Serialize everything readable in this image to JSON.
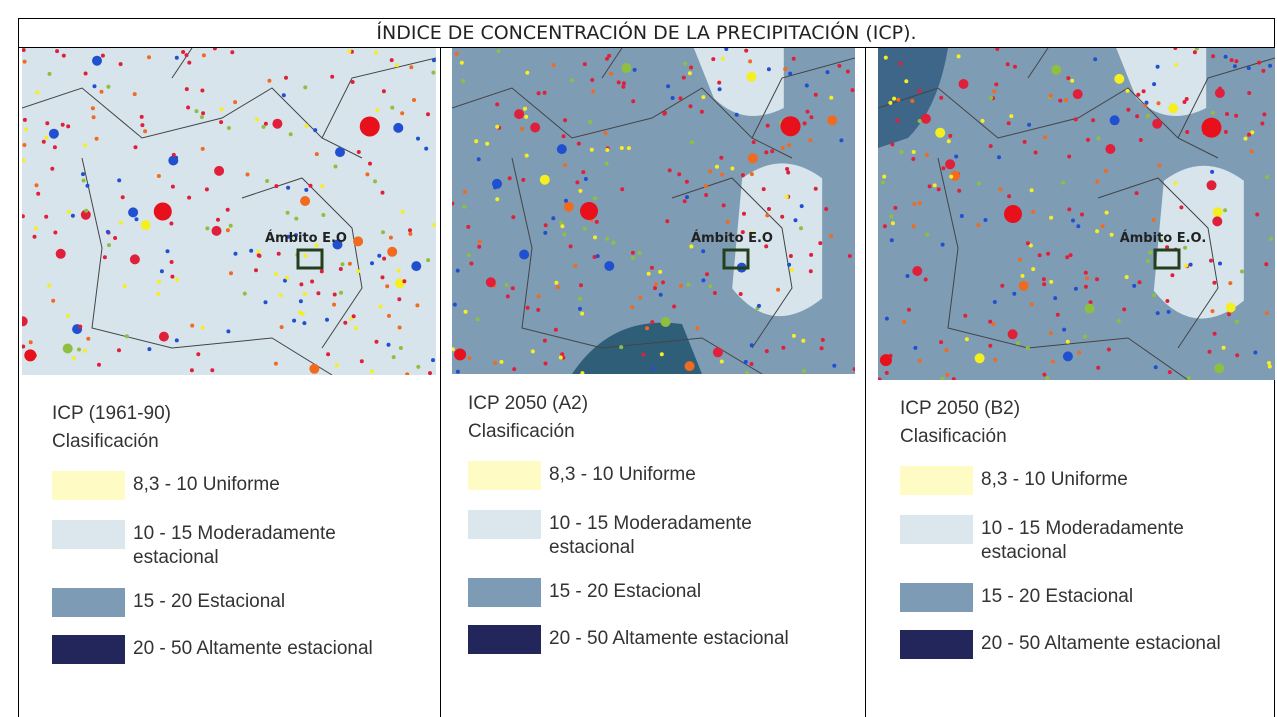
{
  "title": "ÍNDICE DE CONCENTRACIÓN DE LA PRECIPITACIÓN (ICP).",
  "panels": [
    {
      "map_label": "Ámbito E.O",
      "legend_title": "ICP (1961-90)",
      "legend_subtitle": "Clasificación",
      "legend": [
        {
          "label": "8,3 - 10 Uniforme",
          "color": "#fffbc4"
        },
        {
          "label": "10 - 15 Moderadamente estacional",
          "color": "#dce7ed"
        },
        {
          "label": "15 - 20 Estacional",
          "color": "#7d9bb5"
        },
        {
          "label": "20 - 50 Altamente estacional",
          "color": "#22265a"
        }
      ]
    },
    {
      "map_label": "Ámbito E.O",
      "legend_title": "ICP 2050 (A2)",
      "legend_subtitle": "Clasificación",
      "legend": [
        {
          "label": "8,3 - 10 Uniforme",
          "color": "#fffbc4"
        },
        {
          "label": "10 - 15 Moderadamente estacional",
          "color": "#dce7ed"
        },
        {
          "label": "15 - 20 Estacional",
          "color": "#7d9bb5"
        },
        {
          "label": "20 - 50 Altamente estacional",
          "color": "#22265a"
        }
      ]
    },
    {
      "map_label": "Ámbito E.O.",
      "legend_title": "ICP 2050 (B2)",
      "legend_subtitle": "Clasificación",
      "legend": [
        {
          "label": "8,3 - 10 Uniforme",
          "color": "#fffbc4"
        },
        {
          "label": "10 - 15 Moderadamente estacional",
          "color": "#dce7ed"
        },
        {
          "label": "15 - 20 Estacional",
          "color": "#7d9bb5"
        },
        {
          "label": "20 - 50 Altamente estacional",
          "color": "#22265a"
        }
      ]
    }
  ]
}
